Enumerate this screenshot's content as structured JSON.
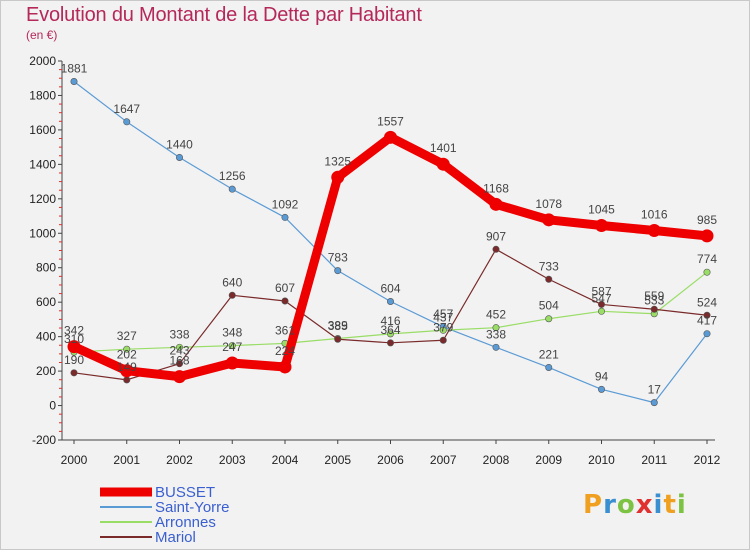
{
  "title": "Evolution du Montant de la Dette par Habitant",
  "subtitle": "(en €)",
  "logo": [
    "P",
    "r",
    "o",
    "x",
    "i",
    "t",
    "i"
  ],
  "logo_colors": [
    "#f0a020",
    "#3a8fd0",
    "#7cc243",
    "#e03030",
    "#3a8fd0",
    "#f0a020",
    "#7cc243"
  ],
  "chart_data": {
    "type": "line",
    "title": "Evolution du Montant de la Dette par Habitant",
    "ylabel": "(en €)",
    "x": [
      "2000",
      "2001",
      "2002",
      "2003",
      "2004",
      "2005",
      "2006",
      "2007",
      "2008",
      "2009",
      "2010",
      "2011",
      "2012"
    ],
    "ylim": [
      -200,
      2000
    ],
    "yticks": [
      "-200",
      "0",
      "200",
      "400",
      "600",
      "800",
      "1000",
      "1200",
      "1400",
      "1600",
      "1800",
      "2000"
    ],
    "grid": false,
    "legend_position": "bottom-left",
    "series": [
      {
        "name": "BUSSET",
        "color": "#ee0000",
        "values": [
          342,
          202,
          168,
          247,
          224,
          1325,
          1557,
          1401,
          1168,
          1078,
          1045,
          1016,
          985
        ],
        "labels": [
          "342",
          "202",
          "168",
          "247",
          "224",
          "1325",
          "1557",
          "1401",
          "1168",
          "1078",
          "1045",
          "1016",
          "985"
        ]
      },
      {
        "name": "Saint-Yorre",
        "color": "#5b9bd5",
        "values": [
          1881,
          1647,
          1440,
          1256,
          1092,
          783,
          604,
          457,
          338,
          221,
          94,
          17,
          417
        ],
        "labels": [
          "1881",
          "1647",
          "1440",
          "1256",
          "1092",
          "783",
          "604",
          "457",
          "338",
          "221",
          "94",
          "17",
          "417"
        ]
      },
      {
        "name": "Arronnes",
        "color": "#99dd66",
        "values": [
          310,
          327,
          338,
          348,
          361,
          389,
          416,
          437,
          452,
          504,
          547,
          533,
          774
        ],
        "labels": [
          "310",
          "327",
          "338",
          "348",
          "361",
          "389",
          "416",
          "437",
          "452",
          "504",
          "547",
          "533",
          "774"
        ]
      },
      {
        "name": "Mariol",
        "color": "#7a2a2a",
        "values": [
          190,
          149,
          243,
          640,
          607,
          385,
          364,
          379,
          907,
          733,
          587,
          559,
          524
        ],
        "labels": [
          "190",
          "149",
          "243",
          "640",
          "607",
          "385",
          "364",
          "379",
          "907",
          "733",
          "587",
          "559",
          "524"
        ]
      }
    ]
  }
}
